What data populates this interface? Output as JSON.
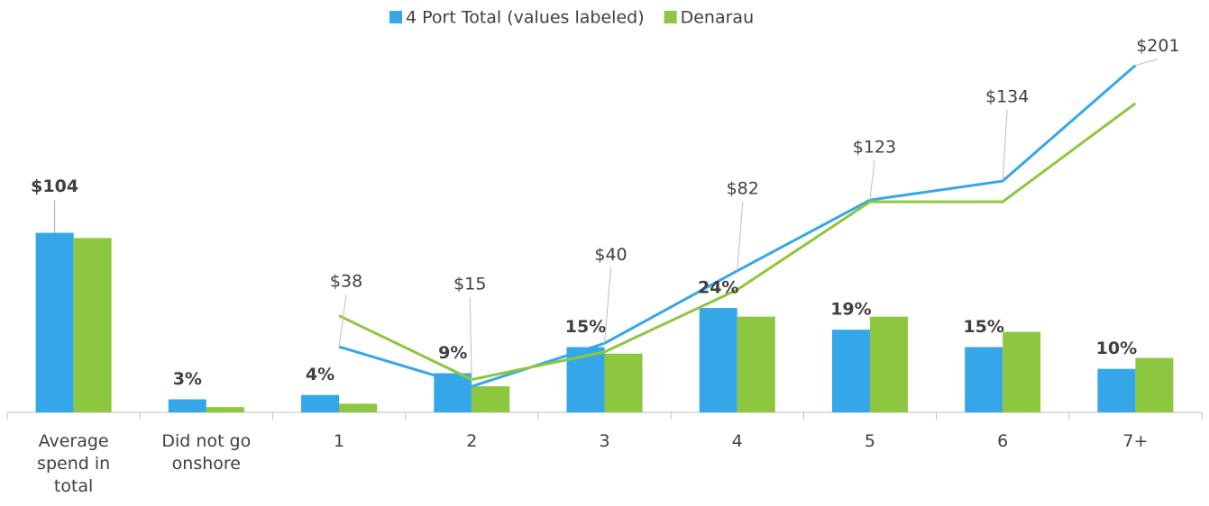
{
  "chart_data": {
    "type": "combo",
    "categories": [
      "Average spend in total",
      "Did not go onshore",
      "1",
      "2",
      "3",
      "4",
      "5",
      "6",
      "7+"
    ],
    "ylim": [
      0,
      86.5
    ],
    "y2lim": [
      0,
      218
    ],
    "series": [
      {
        "name": "4 Port Total (values labeled)",
        "color": "#35a7e8",
        "average": 104,
        "average_label": "$104",
        "values": [
          null,
          3,
          4,
          9,
          15,
          24,
          19,
          15,
          10
        ],
        "value_labels": [
          null,
          "3%",
          "4%",
          "9%",
          "15%",
          "24%",
          "19%",
          "15%",
          "10%"
        ],
        "spend": [
          null,
          null,
          38,
          15,
          40,
          82,
          123,
          134,
          201
        ],
        "spend_labels": [
          null,
          null,
          "$38",
          "$15",
          "$40",
          "$82",
          "$123",
          "$134",
          "$201"
        ]
      },
      {
        "name": "Denarau",
        "color": "#8dc63f",
        "average": 101,
        "values": [
          null,
          1.2,
          2,
          6,
          13.5,
          22,
          22,
          18.5,
          12.5
        ],
        "spend": [
          null,
          null,
          56,
          19,
          35,
          71,
          122,
          122,
          179
        ]
      }
    ]
  }
}
